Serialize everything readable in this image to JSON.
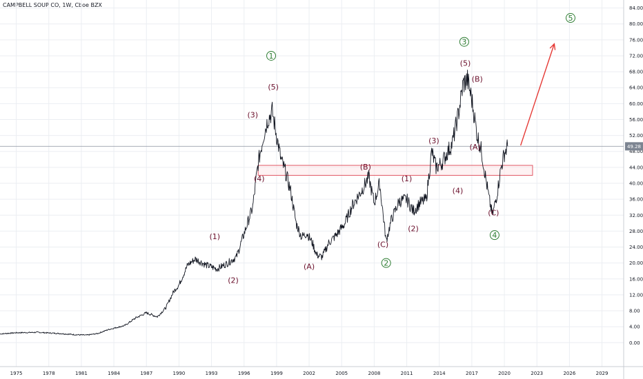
{
  "title": "CAMPBELL SOUP CO, 1W, Cboe BZX",
  "current_price": "49.28",
  "colors": {
    "price_line": "#131722",
    "wave_label": "#6a0f2b",
    "circled_label": "#2e7d32",
    "box_fill": "#fde7ea",
    "box_stroke": "#e05765",
    "arrow": "#e53935",
    "grid": "#ebeef2",
    "price_tag": "#7c8491"
  },
  "chart_data": {
    "type": "line",
    "series": [
      {
        "x": [
          1973.5,
          1975,
          1977,
          1979,
          1980.5,
          1981.5,
          1982.5,
          1983.5,
          1985,
          1986,
          1987,
          1988,
          1988.8,
          1989.5,
          1990,
          1990.8,
          1991.5,
          1992.5,
          1993.5,
          1994.5,
          1995.3,
          1996.2,
          1996.8,
          1997.3,
          1997.8,
          1998.2,
          1998.6,
          1999,
          1999.4,
          1999.8,
          2000.3,
          2000.8,
          2001.3,
          2001.8,
          2002.3,
          2002.7,
          2003.2,
          2003.8,
          2004.5,
          2005.3,
          2006,
          2006.8,
          2007.5,
          2008,
          2008.5,
          2009.1,
          2009.6,
          2010.3,
          2011,
          2011.6,
          2012.2,
          2012.8,
          2013.3,
          2013.7,
          2014.2,
          2014.8,
          2015.2,
          2015.8,
          2016.2,
          2016.6,
          2017,
          2017.5,
          2017.9,
          2018.3,
          2018.6,
          2018.9,
          2019.3,
          2019.7,
          2020,
          2020.3
        ],
        "y": [
          2.2,
          2.5,
          2.6,
          2.3,
          2.0,
          1.9,
          2.3,
          3.3,
          4.3,
          6.2,
          7.5,
          6.5,
          8.8,
          12.8,
          14.5,
          19.5,
          21.0,
          19.5,
          18.5,
          20.0,
          21.5,
          29.0,
          34.0,
          45.0,
          52.0,
          56.0,
          58.0,
          52.0,
          46.0,
          43.0,
          38.0,
          30.0,
          26.5,
          27.5,
          25.0,
          22.0,
          21.5,
          25.0,
          27.0,
          30.0,
          34.5,
          38.0,
          41.5,
          35.0,
          40.0,
          25.5,
          31.0,
          35.5,
          36.0,
          33.0,
          35.0,
          36.0,
          48.0,
          44.0,
          45.0,
          48.0,
          50.0,
          58.0,
          65.0,
          66.0,
          61.0,
          52.0,
          48.0,
          41.0,
          36.0,
          32.0,
          37.0,
          44.0,
          47.5,
          49.3
        ]
      }
    ],
    "xlim": [
      1973.5,
      2031
    ],
    "ylim": [
      -6,
      86
    ],
    "x_ticks": [
      "1975",
      "1978",
      "1981",
      "1984",
      "1987",
      "1990",
      "1993",
      "1996",
      "1999",
      "2002",
      "2005",
      "2008",
      "2011",
      "2014",
      "2017",
      "2020",
      "2023",
      "2026",
      "2029"
    ],
    "y_ticks": [
      "84.00",
      "80.00",
      "76.00",
      "72.00",
      "68.00",
      "64.00",
      "60.00",
      "56.00",
      "52.00",
      "48.00",
      "44.00",
      "40.00",
      "36.00",
      "32.00",
      "28.00",
      "24.00",
      "20.00",
      "16.00",
      "12.00",
      "8.00",
      "4.00",
      "0.00"
    ],
    "grid": true,
    "wave_labels": [
      {
        "text": "(1)",
        "x": 1993.3,
        "y": 26.0
      },
      {
        "text": "(2)",
        "x": 1995.0,
        "y": 15.0
      },
      {
        "text": "(3)",
        "x": 1996.8,
        "y": 56.5
      },
      {
        "text": "(4)",
        "x": 1997.4,
        "y": 40.5
      },
      {
        "text": "(5)",
        "x": 1998.7,
        "y": 63.5
      },
      {
        "text": "(A)",
        "x": 2002.0,
        "y": 18.5
      },
      {
        "text": "(B)",
        "x": 2007.2,
        "y": 43.5
      },
      {
        "text": "(C)",
        "x": 2008.8,
        "y": 24.0
      },
      {
        "text": "(1)",
        "x": 2011.0,
        "y": 40.5
      },
      {
        "text": "(2)",
        "x": 2011.6,
        "y": 28.0
      },
      {
        "text": "(3)",
        "x": 2013.5,
        "y": 50.0
      },
      {
        "text": "(4)",
        "x": 2015.7,
        "y": 37.5
      },
      {
        "text": "(5)",
        "x": 2016.4,
        "y": 69.5
      },
      {
        "text": "(B)",
        "x": 2017.5,
        "y": 65.5
      },
      {
        "text": "(A)",
        "x": 2017.3,
        "y": 48.5
      },
      {
        "text": "(C)",
        "x": 2019.0,
        "y": 32.0
      }
    ],
    "circled_labels": [
      {
        "text": "1",
        "x": 1998.5,
        "y": 72.0
      },
      {
        "text": "2",
        "x": 2009.1,
        "y": 20.0
      },
      {
        "text": "3",
        "x": 2016.3,
        "y": 75.5
      },
      {
        "text": "4",
        "x": 2019.1,
        "y": 27.0
      },
      {
        "text": "5",
        "x": 2026.1,
        "y": 81.5
      }
    ],
    "box": {
      "x1": 1997.3,
      "x2": 2022.6,
      "y1": 44.5,
      "y2": 42.0
    },
    "arrow": {
      "x1": 2021.5,
      "y1": 49.5,
      "x2": 2024.6,
      "y2": 75.0
    }
  }
}
